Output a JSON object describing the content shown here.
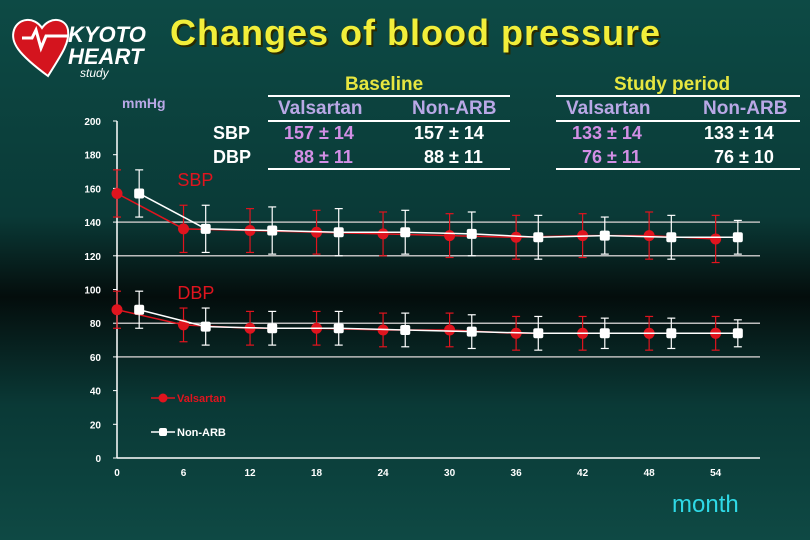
{
  "logo": {
    "line1": "KYOTO",
    "line2": "HEART",
    "line3": "study"
  },
  "slide_title": "Changes of blood pressure",
  "table": {
    "baseline_label": "Baseline",
    "study_label": "Study period",
    "col_valsartan": "Valsartan",
    "col_nonarb": "Non-ARB",
    "sbp_label": "SBP",
    "dbp_label": "DBP",
    "baseline_sbp_valsartan": "157 ± 14",
    "baseline_sbp_nonarb": "157 ± 14",
    "baseline_dbp_valsartan": "88 ± 11",
    "baseline_dbp_nonarb": "88 ± 11",
    "study_sbp_valsartan": "133 ± 14",
    "study_sbp_nonarb": "133 ± 14",
    "study_dbp_valsartan": "76 ± 11",
    "study_dbp_nonarb": "76 ± 10"
  },
  "colors": {
    "valsartan": "#e0141e",
    "nonarb": "#ffffff",
    "grid": "#bdbdbd",
    "axis_text": "#ffffff",
    "ylabel": "#b9a8e6",
    "xlabel": "#2fd9e6",
    "annot": "#e0141e"
  },
  "chart_data": {
    "type": "line",
    "ylabel": "mmHg",
    "xlabel": "month",
    "ylim": [
      0,
      200
    ],
    "xlim": [
      0,
      58
    ],
    "yticks": [
      0,
      20,
      40,
      60,
      80,
      100,
      120,
      140,
      160,
      180,
      200
    ],
    "xticks": [
      0,
      6,
      12,
      18,
      24,
      30,
      36,
      42,
      48,
      54
    ],
    "gridlines_y": [
      60,
      80,
      120,
      140
    ],
    "annotations": [
      {
        "text": "SBP",
        "x": 5,
        "y": 165
      },
      {
        "text": "DBP",
        "x": 5,
        "y": 98
      }
    ],
    "legend": {
      "placement": "bottom-left",
      "entries": [
        "Valsartan",
        "Non-ARB"
      ]
    },
    "series": [
      {
        "name": "Valsartan",
        "group": "SBP",
        "x": [
          0,
          6,
          12,
          18,
          24,
          30,
          36,
          42,
          48,
          54
        ],
        "values": [
          157,
          136,
          135,
          134,
          133,
          132,
          131,
          132,
          132,
          130
        ],
        "err": [
          14,
          14,
          13,
          13,
          13,
          13,
          13,
          13,
          14,
          14
        ]
      },
      {
        "name": "Non-ARB",
        "group": "SBP",
        "x": [
          2,
          8,
          14,
          20,
          26,
          32,
          38,
          44,
          50,
          56
        ],
        "values": [
          157,
          136,
          135,
          134,
          134,
          133,
          131,
          132,
          131,
          131
        ],
        "err": [
          14,
          14,
          14,
          14,
          13,
          13,
          13,
          11,
          13,
          10
        ]
      },
      {
        "name": "Valsartan",
        "group": "DBP",
        "x": [
          0,
          6,
          12,
          18,
          24,
          30,
          36,
          42,
          48,
          54
        ],
        "values": [
          88,
          79,
          77,
          77,
          76,
          76,
          74,
          74,
          74,
          74
        ],
        "err": [
          11,
          10,
          10,
          10,
          10,
          10,
          10,
          10,
          10,
          10
        ]
      },
      {
        "name": "Non-ARB",
        "group": "DBP",
        "x": [
          2,
          8,
          14,
          20,
          26,
          32,
          38,
          44,
          50,
          56
        ],
        "values": [
          88,
          78,
          77,
          77,
          76,
          75,
          74,
          74,
          74,
          74
        ],
        "err": [
          11,
          11,
          10,
          10,
          10,
          10,
          10,
          9,
          9,
          8
        ]
      }
    ]
  }
}
